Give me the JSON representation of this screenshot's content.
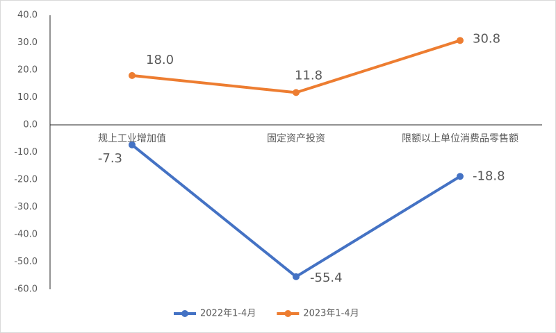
{
  "chart_data": {
    "type": "line",
    "categories": [
      "规上工业增加值",
      "固定资产投资",
      "限额以上单位消费品零售额"
    ],
    "series": [
      {
        "name": "2022年1-4月",
        "color": "#4472c4",
        "values": [
          -7.3,
          -55.4,
          -18.8
        ],
        "value_labels": [
          "-7.3",
          "-55.4",
          "-18.8"
        ]
      },
      {
        "name": "2023年1-4月",
        "color": "#ed7d31",
        "values": [
          18.0,
          11.8,
          30.8
        ],
        "value_labels": [
          "18.0",
          "11.8",
          "30.8"
        ]
      }
    ],
    "ylim": [
      -60,
      40
    ],
    "yticks": [
      {
        "value": 40,
        "label": "40.0"
      },
      {
        "value": 30,
        "label": "30.0"
      },
      {
        "value": 20,
        "label": "20.0"
      },
      {
        "value": 10,
        "label": "10.0"
      },
      {
        "value": 0,
        "label": "0.0"
      },
      {
        "value": -10,
        "label": "-10.0"
      },
      {
        "value": -20,
        "label": "-20.0"
      },
      {
        "value": -30,
        "label": "-30.0"
      },
      {
        "value": -40,
        "label": "-40.0"
      },
      {
        "value": -50,
        "label": "-50.0"
      },
      {
        "value": -60,
        "label": "-60.0"
      }
    ],
    "grid": false,
    "legend": "bottom"
  }
}
